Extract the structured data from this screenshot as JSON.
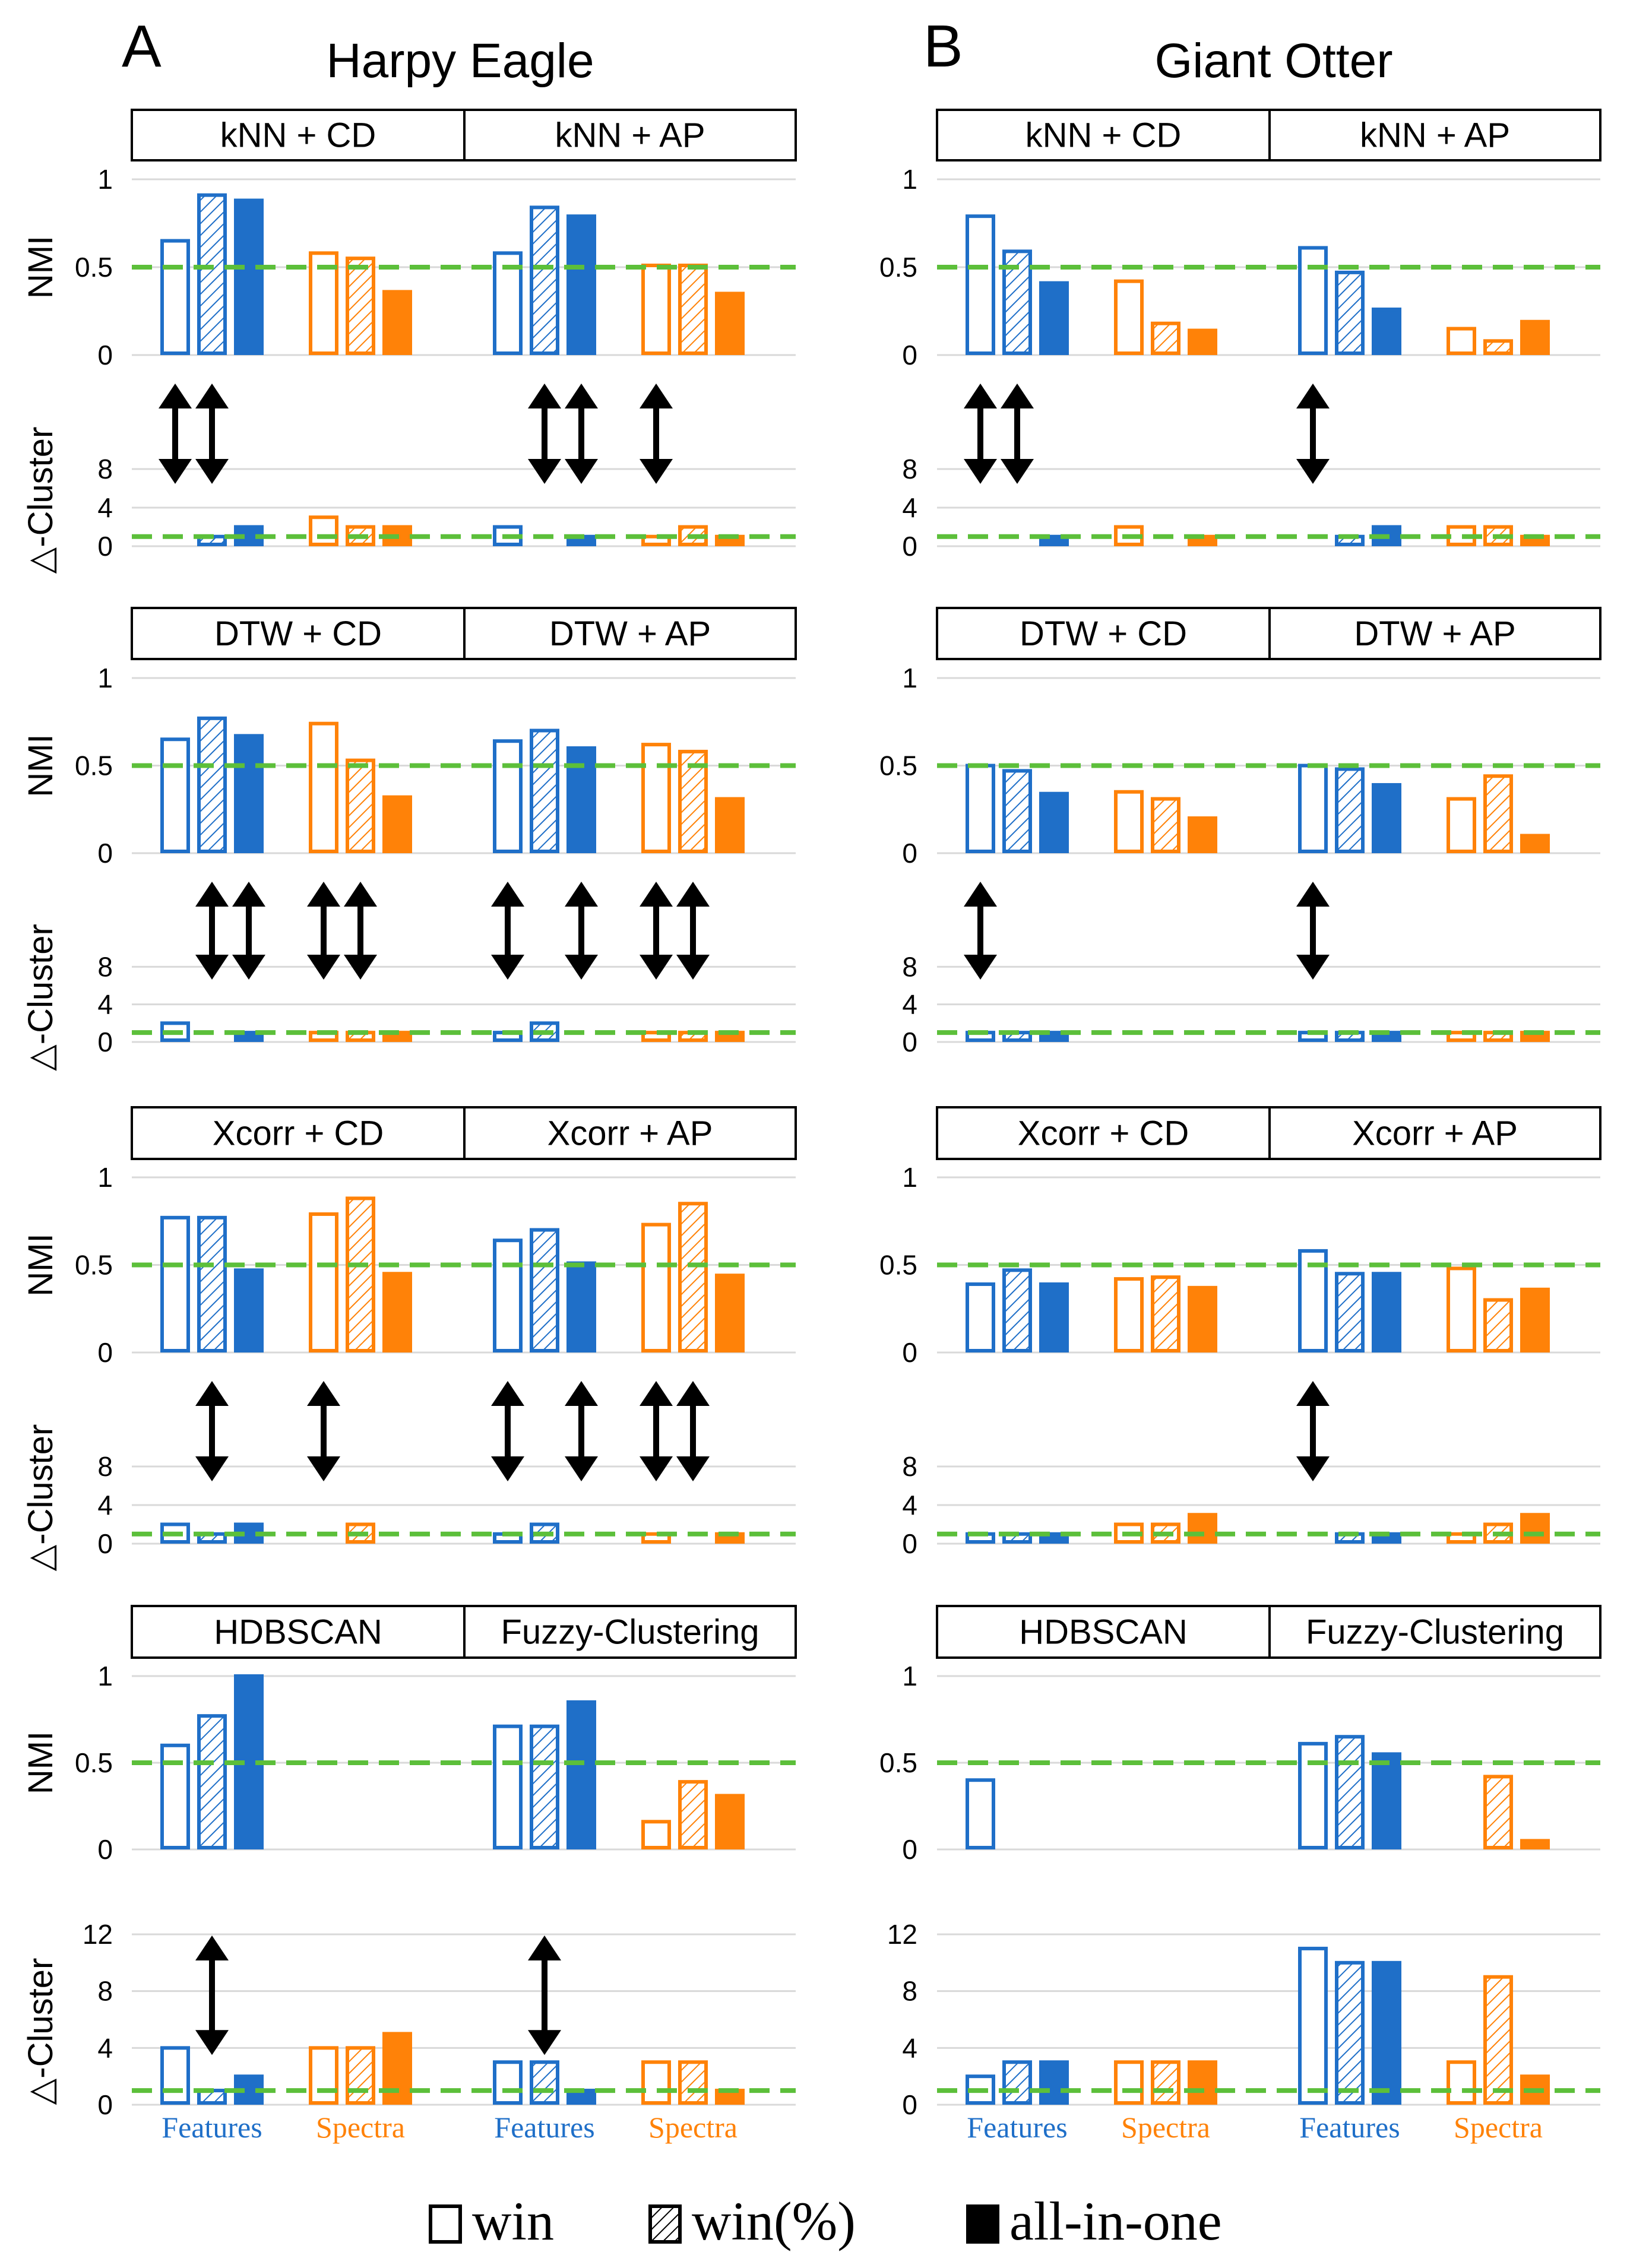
{
  "chart_data": {
    "type": "bar",
    "legend": {
      "position": "bottom-center",
      "entries": [
        {
          "key": "win",
          "label": "win",
          "style": "outline"
        },
        {
          "key": "win_pct",
          "label": "win(%)",
          "style": "hatched"
        },
        {
          "key": "all",
          "label": "all-in-one",
          "style": "solid"
        }
      ]
    },
    "colors": {
      "Features": "#1F6FC8",
      "Spectra": "#FF8208",
      "reference": "#5CBF3A",
      "grid": "#D9D9D9",
      "arrow": "#000000"
    },
    "nmi_axis": {
      "label": "NMI",
      "ticks": [
        "0",
        "0.5",
        "1"
      ],
      "ylim": [
        0,
        1
      ],
      "reference": 0.5
    },
    "cluster_axis": {
      "label": "△-Cluster",
      "reference": 1
    },
    "group_labels": [
      "Features",
      "Spectra"
    ],
    "columns": [
      {
        "letter": "A",
        "title": "Harpy Eagle",
        "rows": [
          {
            "panels": [
              {
                "title": "kNN + CD",
                "nmi": {
                  "Features": [
                    0.65,
                    0.91,
                    0.88
                  ],
                  "Spectra": [
                    0.58,
                    0.55,
                    0.36
                  ]
                },
                "cluster": {
                  "ylim": [
                    0,
                    12
                  ],
                  "ticks": [
                    "0",
                    "4",
                    "8"
                  ],
                  "Features": [
                    0,
                    1,
                    2
                  ],
                  "Spectra": [
                    3,
                    2,
                    2
                  ],
                  "arrows": [
                    0,
                    1
                  ]
                }
              },
              {
                "title": "kNN + AP",
                "nmi": {
                  "Features": [
                    0.58,
                    0.84,
                    0.79
                  ],
                  "Spectra": [
                    0.51,
                    0.51,
                    0.35
                  ]
                },
                "cluster": {
                  "ylim": [
                    0,
                    12
                  ],
                  "ticks": [
                    "0",
                    "4",
                    "8"
                  ],
                  "Features": [
                    2,
                    0,
                    1
                  ],
                  "Spectra": [
                    1,
                    2,
                    1
                  ],
                  "arrows": [
                    1,
                    2,
                    3
                  ]
                }
              }
            ]
          },
          {
            "panels": [
              {
                "title": "DTW + CD",
                "nmi": {
                  "Features": [
                    0.65,
                    0.77,
                    0.67
                  ],
                  "Spectra": [
                    0.74,
                    0.53,
                    0.32
                  ]
                },
                "cluster": {
                  "ylim": [
                    0,
                    12
                  ],
                  "ticks": [
                    "0",
                    "4",
                    "8"
                  ],
                  "Features": [
                    2,
                    0,
                    1
                  ],
                  "Spectra": [
                    1,
                    1,
                    1
                  ],
                  "arrows": [
                    1,
                    2,
                    3,
                    4
                  ]
                }
              },
              {
                "title": "DTW + AP",
                "nmi": {
                  "Features": [
                    0.64,
                    0.7,
                    0.6
                  ],
                  "Spectra": [
                    0.62,
                    0.58,
                    0.31
                  ]
                },
                "cluster": {
                  "ylim": [
                    0,
                    12
                  ],
                  "ticks": [
                    "0",
                    "4",
                    "8"
                  ],
                  "Features": [
                    1,
                    2,
                    0
                  ],
                  "Spectra": [
                    1,
                    1,
                    1
                  ],
                  "arrows": [
                    0,
                    2,
                    3,
                    4
                  ]
                }
              }
            ]
          },
          {
            "panels": [
              {
                "title": "Xcorr + CD",
                "nmi": {
                  "Features": [
                    0.77,
                    0.77,
                    0.47
                  ],
                  "Spectra": [
                    0.79,
                    0.88,
                    0.45
                  ]
                },
                "cluster": {
                  "ylim": [
                    0,
                    12
                  ],
                  "ticks": [
                    "0",
                    "4",
                    "8"
                  ],
                  "Features": [
                    2,
                    1,
                    2
                  ],
                  "Spectra": [
                    0,
                    2,
                    0
                  ],
                  "arrows": [
                    1,
                    3
                  ]
                }
              },
              {
                "title": "Xcorr + AP",
                "nmi": {
                  "Features": [
                    0.64,
                    0.7,
                    0.51
                  ],
                  "Spectra": [
                    0.73,
                    0.85,
                    0.44
                  ]
                },
                "cluster": {
                  "ylim": [
                    0,
                    12
                  ],
                  "ticks": [
                    "0",
                    "4",
                    "8"
                  ],
                  "Features": [
                    1,
                    2,
                    0
                  ],
                  "Spectra": [
                    1,
                    0,
                    1
                  ],
                  "arrows": [
                    0,
                    2,
                    3,
                    4
                  ]
                }
              }
            ]
          },
          {
            "panels": [
              {
                "title": "HDBSCAN",
                "nmi": {
                  "Features": [
                    0.6,
                    0.77,
                    1.0
                  ],
                  "Spectra": [
                    0,
                    0,
                    0
                  ]
                },
                "cluster": {
                  "ylim": [
                    0,
                    12
                  ],
                  "ticks": [
                    "0",
                    "4",
                    "8",
                    "12"
                  ],
                  "Features": [
                    4,
                    1,
                    2
                  ],
                  "Spectra": [
                    4,
                    4,
                    5
                  ],
                  "arrows": [
                    1
                  ]
                }
              },
              {
                "title": "Fuzzy-Clustering",
                "nmi": {
                  "Features": [
                    0.71,
                    0.71,
                    0.85
                  ],
                  "Spectra": [
                    0.16,
                    0.39,
                    0.31
                  ]
                },
                "cluster": {
                  "ylim": [
                    0,
                    12
                  ],
                  "ticks": [
                    "0",
                    "4",
                    "8",
                    "12"
                  ],
                  "Features": [
                    3,
                    3,
                    1
                  ],
                  "Spectra": [
                    3,
                    3,
                    1
                  ],
                  "arrows": [
                    1
                  ]
                }
              }
            ]
          }
        ]
      },
      {
        "letter": "B",
        "title": "Giant Otter",
        "rows": [
          {
            "panels": [
              {
                "title": "kNN + CD",
                "nmi": {
                  "Features": [
                    0.79,
                    0.59,
                    0.41
                  ],
                  "Spectra": [
                    0.42,
                    0.18,
                    0.14
                  ]
                },
                "cluster": {
                  "ylim": [
                    0,
                    12
                  ],
                  "ticks": [
                    "0",
                    "4",
                    "8"
                  ],
                  "Features": [
                    0,
                    0,
                    1
                  ],
                  "Spectra": [
                    2,
                    0,
                    1
                  ],
                  "arrows": [
                    0,
                    1
                  ]
                }
              },
              {
                "title": "kNN + AP",
                "nmi": {
                  "Features": [
                    0.61,
                    0.47,
                    0.26
                  ],
                  "Spectra": [
                    0.15,
                    0.08,
                    0.19
                  ]
                },
                "cluster": {
                  "ylim": [
                    0,
                    12
                  ],
                  "ticks": [
                    "0",
                    "4",
                    "8"
                  ],
                  "Features": [
                    0,
                    1,
                    2
                  ],
                  "Spectra": [
                    2,
                    2,
                    1
                  ],
                  "arrows": [
                    0
                  ]
                }
              }
            ]
          },
          {
            "panels": [
              {
                "title": "DTW + CD",
                "nmi": {
                  "Features": [
                    0.5,
                    0.47,
                    0.34
                  ],
                  "Spectra": [
                    0.35,
                    0.31,
                    0.2
                  ]
                },
                "cluster": {
                  "ylim": [
                    0,
                    12
                  ],
                  "ticks": [
                    "0",
                    "4",
                    "8"
                  ],
                  "Features": [
                    1,
                    1,
                    1
                  ],
                  "Spectra": [
                    0,
                    0,
                    0
                  ],
                  "arrows": [
                    0
                  ]
                }
              },
              {
                "title": "DTW + AP",
                "nmi": {
                  "Features": [
                    0.5,
                    0.48,
                    0.39
                  ],
                  "Spectra": [
                    0.31,
                    0.44,
                    0.1
                  ]
                },
                "cluster": {
                  "ylim": [
                    0,
                    12
                  ],
                  "ticks": [
                    "0",
                    "4",
                    "8"
                  ],
                  "Features": [
                    1,
                    1,
                    1
                  ],
                  "Spectra": [
                    1,
                    1,
                    1
                  ],
                  "arrows": [
                    0
                  ]
                }
              }
            ]
          },
          {
            "panels": [
              {
                "title": "Xcorr + CD",
                "nmi": {
                  "Features": [
                    0.39,
                    0.47,
                    0.39
                  ],
                  "Spectra": [
                    0.42,
                    0.43,
                    0.37
                  ]
                },
                "cluster": {
                  "ylim": [
                    0,
                    12
                  ],
                  "ticks": [
                    "0",
                    "4",
                    "8"
                  ],
                  "Features": [
                    1,
                    1,
                    1
                  ],
                  "Spectra": [
                    2,
                    2,
                    3
                  ],
                  "arrows": []
                }
              },
              {
                "title": "Xcorr + AP",
                "nmi": {
                  "Features": [
                    0.58,
                    0.45,
                    0.45
                  ],
                  "Spectra": [
                    0.48,
                    0.3,
                    0.36
                  ]
                },
                "cluster": {
                  "ylim": [
                    0,
                    12
                  ],
                  "ticks": [
                    "0",
                    "4",
                    "8"
                  ],
                  "Features": [
                    0,
                    1,
                    1
                  ],
                  "Spectra": [
                    1,
                    2,
                    3
                  ],
                  "arrows": [
                    0
                  ]
                }
              }
            ]
          },
          {
            "panels": [
              {
                "title": "HDBSCAN",
                "nmi": {
                  "Features": [
                    0.4,
                    0,
                    0
                  ],
                  "Spectra": [
                    0,
                    0,
                    0
                  ]
                },
                "cluster": {
                  "ylim": [
                    0,
                    12
                  ],
                  "ticks": [
                    "0",
                    "4",
                    "8",
                    "12"
                  ],
                  "Features": [
                    2,
                    3,
                    3
                  ],
                  "Spectra": [
                    3,
                    3,
                    3
                  ],
                  "arrows": []
                }
              },
              {
                "title": "Fuzzy-Clustering",
                "nmi": {
                  "Features": [
                    0.61,
                    0.65,
                    0.55
                  ],
                  "Spectra": [
                    0,
                    0.42,
                    0.05
                  ]
                },
                "cluster": {
                  "ylim": [
                    0,
                    12
                  ],
                  "ticks": [
                    "0",
                    "4",
                    "8",
                    "12"
                  ],
                  "Features": [
                    11,
                    10,
                    10
                  ],
                  "Spectra": [
                    3,
                    9,
                    2
                  ],
                  "arrows": []
                }
              }
            ]
          }
        ]
      }
    ]
  }
}
